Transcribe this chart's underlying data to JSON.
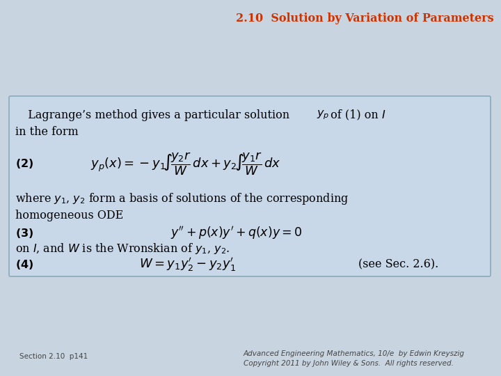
{
  "title": "2.10  Solution by Variation of Parameters",
  "title_color": "#CC3300",
  "title_fontsize": 11.5,
  "slide_bg": "#C8D4E0",
  "box_bg_color": "#C8D8E8",
  "box_border_color": "#8AAABB",
  "footer_left": "Section 2.10  p141",
  "footer_right": "Advanced Engineering Mathematics, 10/e  by Edwin Kreyszig\nCopyright 2011 by John Wiley & Sons.  All rights reserved.",
  "footer_fontsize": 7.5
}
